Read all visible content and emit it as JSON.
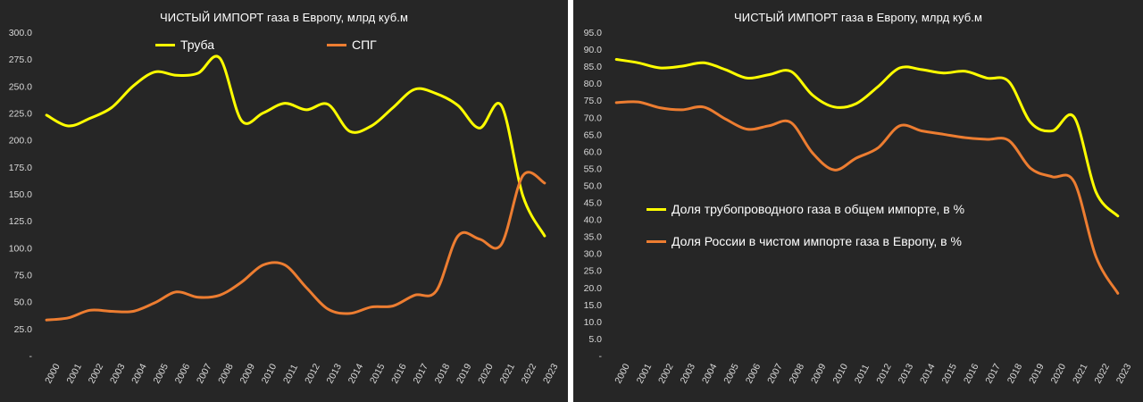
{
  "chart_data": [
    {
      "type": "line",
      "title": "ЧИСТЫЙ ИМПОРТ газа в Европу, млрд куб.м",
      "xlabel": "",
      "ylabel": "",
      "ylim": [
        0,
        300
      ],
      "yticks": [
        "-",
        "25.0",
        "50.0",
        "75.0",
        "100.0",
        "125.0",
        "150.0",
        "175.0",
        "200.0",
        "225.0",
        "250.0",
        "275.0",
        "300.0"
      ],
      "grid": false,
      "legend_position": "top",
      "categories": [
        "2000",
        "2001",
        "2002",
        "2003",
        "2004",
        "2005",
        "2006",
        "2007",
        "2008",
        "2009",
        "2010",
        "2011",
        "2012",
        "2013",
        "2014",
        "2015",
        "2016",
        "2017",
        "2018",
        "2019",
        "2020",
        "2021",
        "2022",
        "2023"
      ],
      "series": [
        {
          "name": "Труба",
          "color": "#ffff00",
          "values": [
            223,
            213,
            220,
            230,
            250,
            263,
            260,
            262,
            276,
            218,
            225,
            234,
            228,
            233,
            208,
            213,
            230,
            247,
            243,
            232,
            211,
            232,
            148,
            111
          ]
        },
        {
          "name": "СПГ",
          "color": "#ed7d31",
          "values": [
            33,
            35,
            42,
            41,
            41,
            49,
            59,
            54,
            56,
            68,
            84,
            84,
            63,
            43,
            39,
            45,
            46,
            56,
            60,
            111,
            108,
            103,
            167,
            160
          ]
        }
      ]
    },
    {
      "type": "line",
      "title": "ЧИСТЫЙ ИМПОРТ газа в Европу, млрд куб.м",
      "xlabel": "",
      "ylabel": "",
      "ylim": [
        0,
        95
      ],
      "yticks": [
        "-",
        "5.0",
        "10.0",
        "15.0",
        "20.0",
        "25.0",
        "30.0",
        "35.0",
        "40.0",
        "45.0",
        "50.0",
        "55.0",
        "60.0",
        "65.0",
        "70.0",
        "75.0",
        "80.0",
        "85.0",
        "90.0",
        "95.0"
      ],
      "grid": false,
      "legend_position": "center-left",
      "categories": [
        "2000",
        "2001",
        "2002",
        "2003",
        "2004",
        "2005",
        "2006",
        "2007",
        "2008",
        "2009",
        "2010",
        "2011",
        "2012",
        "2013",
        "2014",
        "2015",
        "2016",
        "2017",
        "2018",
        "2019",
        "2020",
        "2021",
        "2022",
        "2023"
      ],
      "series": [
        {
          "name": "Доля трубопроводного газа в общем импорте, в %",
          "color": "#ffff00",
          "values": [
            87,
            86,
            84.5,
            85,
            86,
            84,
            81.5,
            82.5,
            83.5,
            76.5,
            73,
            74,
            79,
            84.5,
            84,
            83,
            83.5,
            81.5,
            80.5,
            68.5,
            66,
            70,
            48,
            41
          ]
        },
        {
          "name": "Доля России в чистом импорте газа в Европу, в %",
          "color": "#ed7d31",
          "values": [
            74.3,
            74.5,
            72.8,
            72.2,
            73,
            69.5,
            66.5,
            67.5,
            68.5,
            59.5,
            54.5,
            58,
            61,
            67.5,
            66,
            65,
            64,
            63.5,
            63.2,
            55,
            52.5,
            51,
            29,
            18.3
          ]
        }
      ]
    }
  ]
}
